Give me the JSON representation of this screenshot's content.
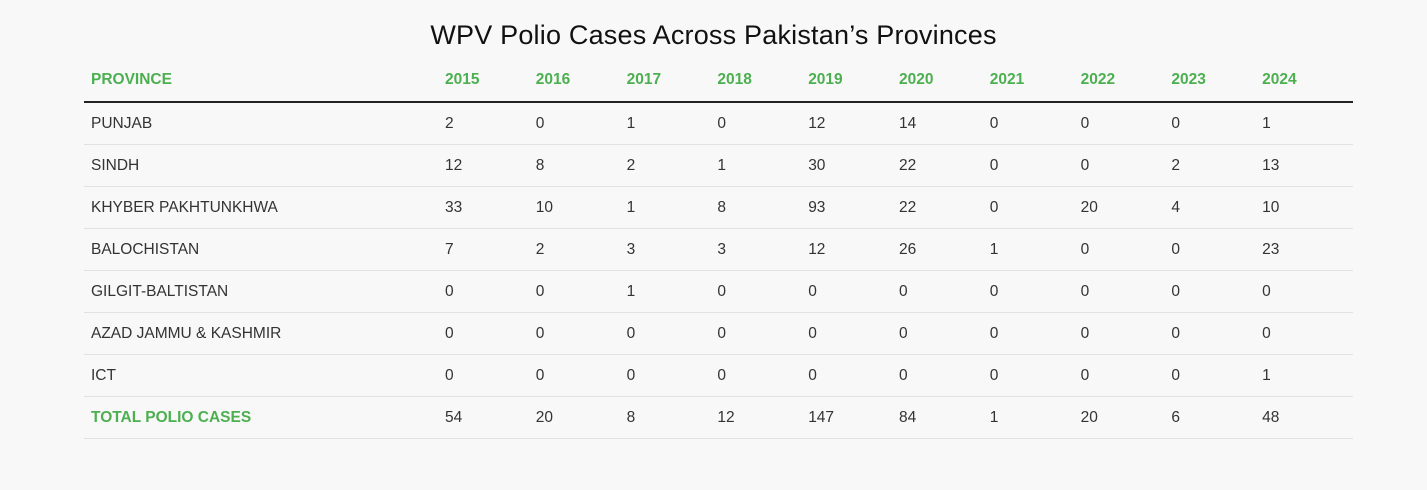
{
  "title": "WPV Polio Cases Across Pakistan’s Provinces",
  "colors": {
    "accent": "#4caf50",
    "text": "#333333",
    "background": "#f8f8f8"
  },
  "header": {
    "province_label": "PROVINCE",
    "years": [
      "2015",
      "2016",
      "2017",
      "2018",
      "2019",
      "2020",
      "2021",
      "2022",
      "2023",
      "2024"
    ]
  },
  "rows": [
    {
      "province": "PUNJAB",
      "values": [
        "2",
        "0",
        "1",
        "0",
        "12",
        "14",
        "0",
        "0",
        "0",
        "1"
      ]
    },
    {
      "province": "SINDH",
      "values": [
        "12",
        "8",
        "2",
        "1",
        "30",
        "22",
        "0",
        "0",
        "2",
        "13"
      ]
    },
    {
      "province": "KHYBER PAKHTUNKHWA",
      "values": [
        "33",
        "10",
        "1",
        "8",
        "93",
        "22",
        "0",
        "20",
        "4",
        "10"
      ]
    },
    {
      "province": "BALOCHISTAN",
      "values": [
        "7",
        "2",
        "3",
        "3",
        "12",
        "26",
        "1",
        "0",
        "0",
        "23"
      ]
    },
    {
      "province": "GILGIT-BALTISTAN",
      "values": [
        "0",
        "0",
        "1",
        "0",
        "0",
        "0",
        "0",
        "0",
        "0",
        "0"
      ]
    },
    {
      "province": "AZAD JAMMU & KASHMIR",
      "values": [
        "0",
        "0",
        "0",
        "0",
        "0",
        "0",
        "0",
        "0",
        "0",
        "0"
      ]
    },
    {
      "province": "ICT",
      "values": [
        "0",
        "0",
        "0",
        "0",
        "0",
        "0",
        "0",
        "0",
        "0",
        "1"
      ]
    }
  ],
  "total": {
    "label": "TOTAL POLIO CASES",
    "values": [
      "54",
      "20",
      "8",
      "12",
      "147",
      "84",
      "1",
      "20",
      "6",
      "48"
    ]
  }
}
